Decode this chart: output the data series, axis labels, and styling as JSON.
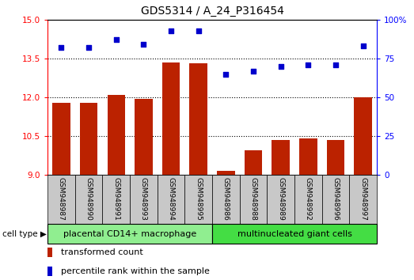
{
  "title": "GDS5314 / A_24_P316454",
  "samples": [
    "GSM948987",
    "GSM948990",
    "GSM948991",
    "GSM948993",
    "GSM948994",
    "GSM948995",
    "GSM948986",
    "GSM948988",
    "GSM948989",
    "GSM948992",
    "GSM948996",
    "GSM948997"
  ],
  "bar_values": [
    11.8,
    11.8,
    12.1,
    11.95,
    13.35,
    13.3,
    9.15,
    9.95,
    10.35,
    10.4,
    10.35,
    12.0
  ],
  "scatter_values": [
    82,
    82,
    87,
    84,
    93,
    93,
    65,
    67,
    70,
    71,
    71,
    83
  ],
  "ylim_left": [
    9,
    15
  ],
  "ylim_right": [
    0,
    100
  ],
  "yticks_left": [
    9,
    10.5,
    12,
    13.5,
    15
  ],
  "yticks_right": [
    0,
    25,
    50,
    75,
    100
  ],
  "bar_color": "#BB2200",
  "scatter_color": "#0000CC",
  "group1_label": "placental CD14+ macrophage",
  "group2_label": "multinucleated giant cells",
  "group1_count": 6,
  "group2_count": 6,
  "group1_bg": "#90EE90",
  "group2_bg": "#44DD44",
  "xlabel_row_bg": "#C8C8C8",
  "legend_bar_label": "transformed count",
  "legend_scatter_label": "percentile rank within the sample",
  "cell_type_label": "cell type",
  "grid_lines": [
    10.5,
    12.0,
    13.5
  ],
  "title_fontsize": 10,
  "tick_fontsize": 7.5,
  "label_fontsize": 8
}
